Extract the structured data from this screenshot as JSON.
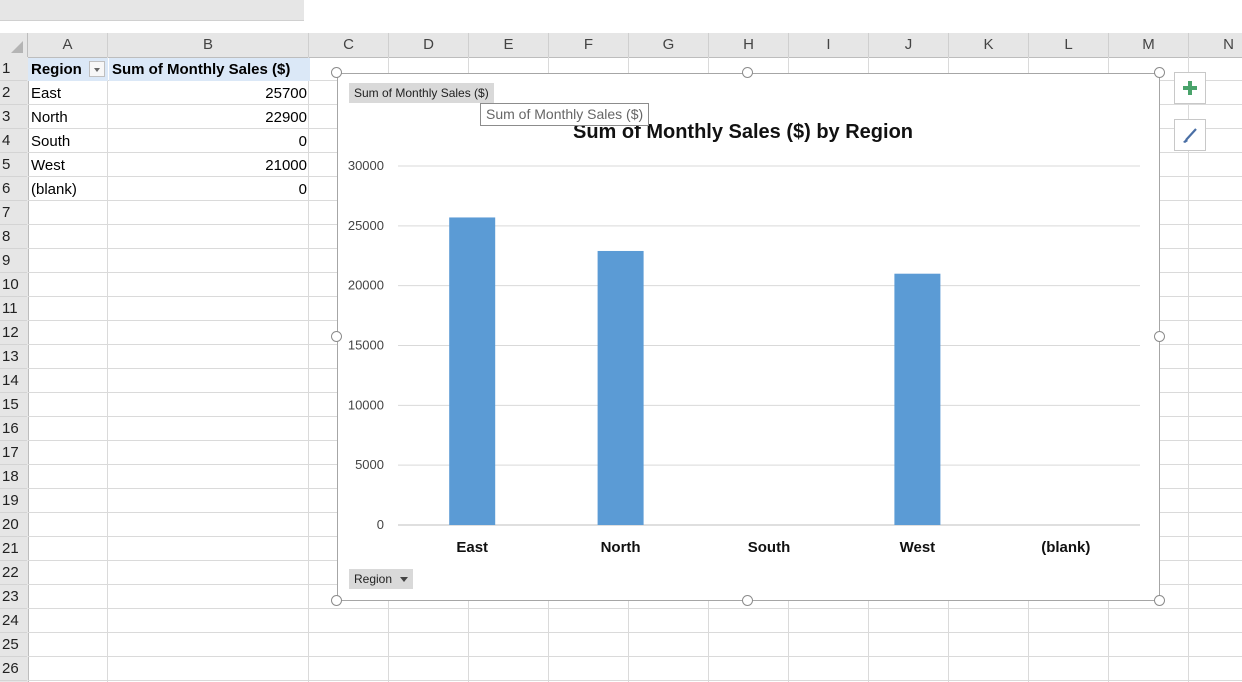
{
  "columns": [
    "A",
    "B",
    "C",
    "D",
    "E",
    "F",
    "G",
    "H",
    "I",
    "J",
    "K",
    "L",
    "M",
    "N"
  ],
  "rows": [
    "1",
    "2",
    "3",
    "4",
    "5",
    "6",
    "7",
    "8",
    "9",
    "10",
    "11",
    "12",
    "13",
    "14",
    "15",
    "16",
    "17",
    "18",
    "19",
    "20",
    "21",
    "22",
    "23",
    "24",
    "25",
    "26"
  ],
  "pivot": {
    "header_region": "Region",
    "header_sum": "Sum of Monthly Sales ($)",
    "rows": [
      {
        "label": "East",
        "value": "25700"
      },
      {
        "label": "North",
        "value": "22900"
      },
      {
        "label": "South",
        "value": "0"
      },
      {
        "label": "West",
        "value": "21000"
      },
      {
        "label": "(blank)",
        "value": "0"
      }
    ]
  },
  "chart": {
    "field_button_values": "Sum of Monthly  Sales ($)",
    "field_button_axis": "Region",
    "tooltip": "Sum of Monthly Sales ($)",
    "bar_color": "#5b9bd5",
    "side_buttons": [
      "plus-icon",
      "paintbrush-icon"
    ]
  },
  "chart_data": {
    "type": "bar",
    "title": "Sum of Monthly Sales ($) by Region",
    "categories": [
      "East",
      "North",
      "South",
      "West",
      "(blank)"
    ],
    "values": [
      25700,
      22900,
      0,
      21000,
      0
    ],
    "ylim": [
      0,
      30000
    ],
    "yticks": [
      0,
      5000,
      10000,
      15000,
      20000,
      25000,
      30000
    ],
    "grid": true,
    "legend": "none"
  }
}
